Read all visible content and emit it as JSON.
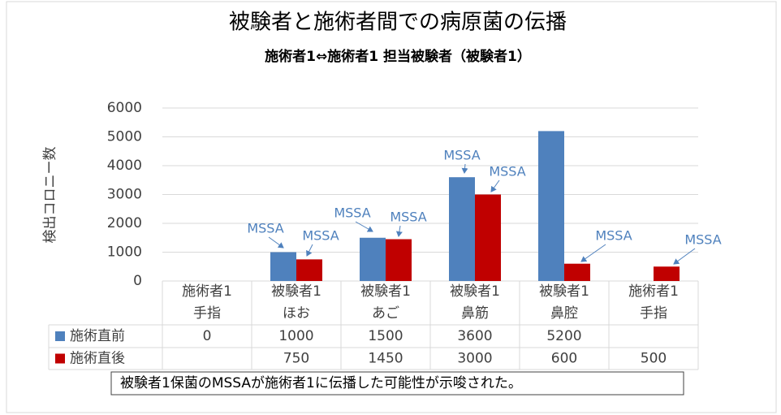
{
  "chart_data": {
    "type": "bar",
    "title": "被験者と施術者間での病原菌の伝播",
    "subtitle": "施術者1⇔施術者1 担当被験者（被験者1）",
    "y_label": "検出コロニー数",
    "categories": [
      [
        "施術者1",
        "手指"
      ],
      [
        "被験者1",
        "ほお"
      ],
      [
        "被験者1",
        "あご"
      ],
      [
        "被験者1",
        "鼻筋"
      ],
      [
        "被験者1",
        "鼻腔"
      ],
      [
        "施術者1",
        "手指"
      ]
    ],
    "series": [
      {
        "name": "施術直前",
        "color": "#4f81bd",
        "values": [
          0,
          1000,
          1500,
          3600,
          5200,
          null
        ]
      },
      {
        "name": "施術直後",
        "color": "#c00000",
        "values": [
          null,
          750,
          1450,
          3000,
          600,
          500
        ]
      }
    ],
    "ylim": [
      0,
      6000
    ],
    "yticks": [
      0,
      1000,
      2000,
      3000,
      4000,
      5000,
      6000
    ],
    "grid": true,
    "annotations": [
      "MSSA",
      "MSSA",
      "MSSA",
      "MSSA",
      "MSSA",
      "MSSA",
      "MSSA",
      "MSSA"
    ],
    "note": "被験者1保菌のMSSAが施術者1に伝播した可能性が示唆された。"
  }
}
